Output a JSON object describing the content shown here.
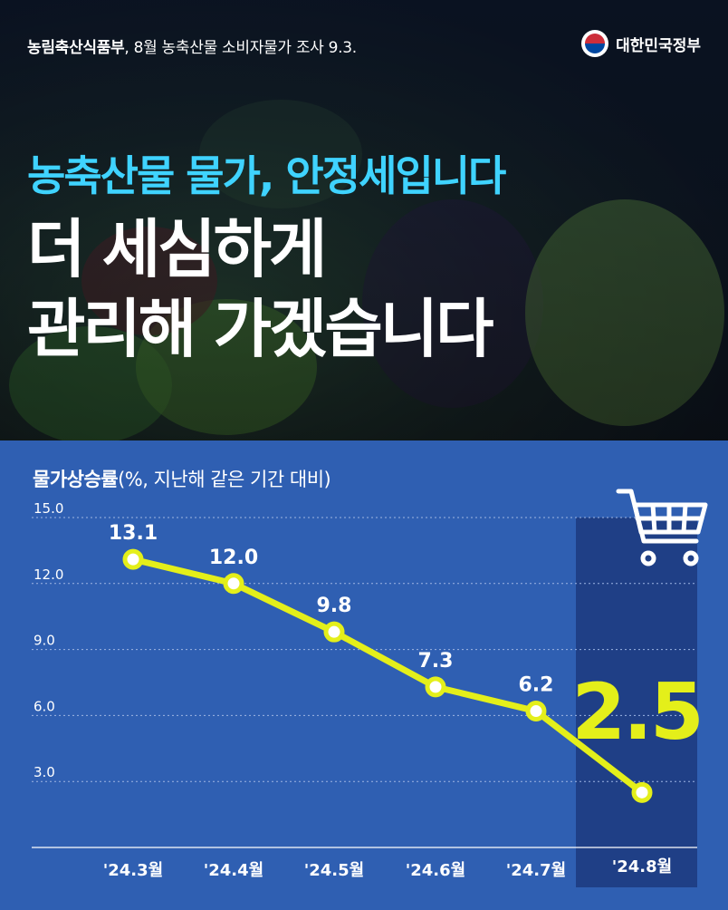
{
  "header": {
    "ministry": "농림축산식품부",
    "note": ", 8월 농축산물 소비자물가 조사 9.3.",
    "government": "대한민국정부"
  },
  "headline": {
    "line1": "농축산물 물가, 안정세입니다",
    "line2": "더 세심하게",
    "line3": "관리해 가겠습니다"
  },
  "colors": {
    "headline_accent": "#3fd3ff",
    "panel_bg": "#2f5fb2",
    "highlight_bg": "#1f3f86",
    "line": "#e4ef1a",
    "highlight_text": "#e4ef1a"
  },
  "icons": [
    "shopping-cart-icon",
    "government-emblem-icon"
  ],
  "chart_data": {
    "type": "line",
    "title": "물가상승률",
    "subtitle": "(%, 지난해 같은 기간 대비)",
    "categories": [
      "'24.3월",
      "'24.4월",
      "'24.5월",
      "'24.6월",
      "'24.7월",
      "'24.8월"
    ],
    "values": [
      13.1,
      12.0,
      9.8,
      7.3,
      6.2,
      2.5
    ],
    "value_labels": [
      "13.1",
      "12.0",
      "9.8",
      "7.3",
      "6.2",
      "2.5"
    ],
    "y_ticks": [
      "15.0",
      "12.0",
      "9.0",
      "6.0",
      "3.0"
    ],
    "y_tick_values": [
      15,
      12,
      9,
      6,
      3
    ],
    "ylim": [
      0,
      15
    ],
    "grid": true,
    "highlight_category": "'24.8월"
  }
}
